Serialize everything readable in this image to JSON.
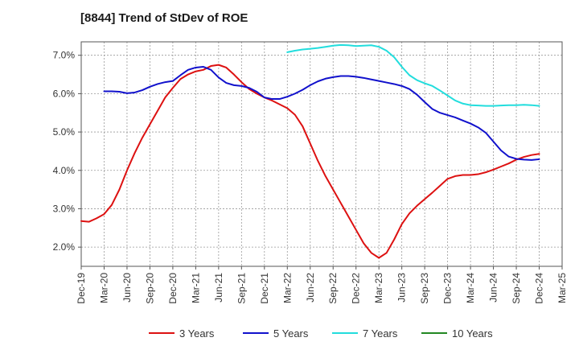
{
  "chart_data": {
    "type": "line",
    "title": "[8844]  Trend of StDev of ROE",
    "xlabel": "",
    "ylabel": "",
    "x_ticks": [
      "Dec-19",
      "Mar-20",
      "Jun-20",
      "Sep-20",
      "Dec-20",
      "Mar-21",
      "Jun-21",
      "Sep-21",
      "Dec-21",
      "Mar-22",
      "Jun-22",
      "Sep-22",
      "Dec-22",
      "Mar-23",
      "Jun-23",
      "Sep-23",
      "Dec-23",
      "Mar-24",
      "Jun-24",
      "Sep-24",
      "Dec-24",
      "Mar-25"
    ],
    "y_ticks": [
      "2.0%",
      "3.0%",
      "4.0%",
      "5.0%",
      "6.0%",
      "7.0%"
    ],
    "y_tick_values": [
      2.0,
      3.0,
      4.0,
      5.0,
      6.0,
      7.0
    ],
    "ylim": [
      1.5,
      7.35
    ],
    "grid": true,
    "legend_position": "bottom",
    "series": [
      {
        "name": "3 Years",
        "color": "#dd1111",
        "points": [
          [
            "Dec-19",
            2.68
          ],
          [
            "Jan-20",
            2.66
          ],
          [
            "Feb-20",
            2.75
          ],
          [
            "Mar-20",
            2.86
          ],
          [
            "Apr-20",
            3.1
          ],
          [
            "May-20",
            3.5
          ],
          [
            "Jun-20",
            4.0
          ],
          [
            "Jul-20",
            4.45
          ],
          [
            "Aug-20",
            4.85
          ],
          [
            "Sep-20",
            5.2
          ],
          [
            "Oct-20",
            5.55
          ],
          [
            "Nov-20",
            5.9
          ],
          [
            "Dec-20",
            6.15
          ],
          [
            "Jan-21",
            6.38
          ],
          [
            "Feb-21",
            6.5
          ],
          [
            "Mar-21",
            6.58
          ],
          [
            "Apr-21",
            6.62
          ],
          [
            "May-21",
            6.72
          ],
          [
            "Jun-21",
            6.75
          ],
          [
            "Jul-21",
            6.68
          ],
          [
            "Aug-21",
            6.5
          ],
          [
            "Sep-21",
            6.3
          ],
          [
            "Oct-21",
            6.12
          ],
          [
            "Nov-21",
            6.0
          ],
          [
            "Dec-21",
            5.9
          ],
          [
            "Jan-22",
            5.82
          ],
          [
            "Feb-22",
            5.72
          ],
          [
            "Mar-22",
            5.62
          ],
          [
            "Apr-22",
            5.45
          ],
          [
            "May-22",
            5.15
          ],
          [
            "Jun-22",
            4.7
          ],
          [
            "Jul-22",
            4.25
          ],
          [
            "Aug-22",
            3.85
          ],
          [
            "Sep-22",
            3.5
          ],
          [
            "Oct-22",
            3.15
          ],
          [
            "Nov-22",
            2.8
          ],
          [
            "Dec-22",
            2.45
          ],
          [
            "Jan-23",
            2.1
          ],
          [
            "Feb-23",
            1.85
          ],
          [
            "Mar-23",
            1.72
          ],
          [
            "Apr-23",
            1.85
          ],
          [
            "May-23",
            2.2
          ],
          [
            "Jun-23",
            2.6
          ],
          [
            "Jul-23",
            2.88
          ],
          [
            "Aug-23",
            3.08
          ],
          [
            "Sep-23",
            3.25
          ],
          [
            "Oct-23",
            3.42
          ],
          [
            "Nov-23",
            3.6
          ],
          [
            "Dec-23",
            3.78
          ],
          [
            "Jan-24",
            3.85
          ],
          [
            "Feb-24",
            3.88
          ],
          [
            "Mar-24",
            3.88
          ],
          [
            "Apr-24",
            3.9
          ],
          [
            "May-24",
            3.95
          ],
          [
            "Jun-24",
            4.02
          ],
          [
            "Jul-24",
            4.1
          ],
          [
            "Aug-24",
            4.18
          ],
          [
            "Sep-24",
            4.28
          ],
          [
            "Oct-24",
            4.35
          ],
          [
            "Nov-24",
            4.4
          ],
          [
            "Dec-24",
            4.43
          ]
        ]
      },
      {
        "name": "5 Years",
        "color": "#1111cc",
        "points": [
          [
            "Mar-20",
            6.06
          ],
          [
            "Apr-20",
            6.06
          ],
          [
            "May-20",
            6.05
          ],
          [
            "Jun-20",
            6.01
          ],
          [
            "Jul-20",
            6.03
          ],
          [
            "Aug-20",
            6.09
          ],
          [
            "Sep-20",
            6.18
          ],
          [
            "Oct-20",
            6.25
          ],
          [
            "Nov-20",
            6.3
          ],
          [
            "Dec-20",
            6.33
          ],
          [
            "Jan-21",
            6.48
          ],
          [
            "Feb-21",
            6.62
          ],
          [
            "Mar-21",
            6.68
          ],
          [
            "Apr-21",
            6.7
          ],
          [
            "May-21",
            6.62
          ],
          [
            "Jun-21",
            6.42
          ],
          [
            "Jul-21",
            6.28
          ],
          [
            "Aug-21",
            6.22
          ],
          [
            "Sep-21",
            6.2
          ],
          [
            "Oct-21",
            6.15
          ],
          [
            "Nov-21",
            6.05
          ],
          [
            "Dec-21",
            5.9
          ],
          [
            "Jan-22",
            5.86
          ],
          [
            "Feb-22",
            5.86
          ],
          [
            "Mar-22",
            5.92
          ],
          [
            "Apr-22",
            6.0
          ],
          [
            "May-22",
            6.1
          ],
          [
            "Jun-22",
            6.22
          ],
          [
            "Jul-22",
            6.32
          ],
          [
            "Aug-22",
            6.39
          ],
          [
            "Sep-22",
            6.43
          ],
          [
            "Oct-22",
            6.46
          ],
          [
            "Nov-22",
            6.46
          ],
          [
            "Dec-22",
            6.44
          ],
          [
            "Jan-23",
            6.41
          ],
          [
            "Feb-23",
            6.37
          ],
          [
            "Mar-23",
            6.33
          ],
          [
            "Apr-23",
            6.29
          ],
          [
            "May-23",
            6.25
          ],
          [
            "Jun-23",
            6.2
          ],
          [
            "Jul-23",
            6.12
          ],
          [
            "Aug-23",
            5.97
          ],
          [
            "Sep-23",
            5.78
          ],
          [
            "Oct-23",
            5.6
          ],
          [
            "Nov-23",
            5.5
          ],
          [
            "Dec-23",
            5.44
          ],
          [
            "Jan-24",
            5.38
          ],
          [
            "Feb-24",
            5.3
          ],
          [
            "Mar-24",
            5.22
          ],
          [
            "Apr-24",
            5.12
          ],
          [
            "May-24",
            4.98
          ],
          [
            "Jun-24",
            4.75
          ],
          [
            "Jul-24",
            4.52
          ],
          [
            "Aug-24",
            4.36
          ],
          [
            "Sep-24",
            4.3
          ],
          [
            "Oct-24",
            4.28
          ],
          [
            "Nov-24",
            4.27
          ],
          [
            "Dec-24",
            4.29
          ]
        ]
      },
      {
        "name": "7 Years",
        "color": "#22dddd",
        "points": [
          [
            "Mar-22",
            7.08
          ],
          [
            "Apr-22",
            7.12
          ],
          [
            "May-22",
            7.15
          ],
          [
            "Jun-22",
            7.17
          ],
          [
            "Jul-22",
            7.19
          ],
          [
            "Aug-22",
            7.22
          ],
          [
            "Sep-22",
            7.25
          ],
          [
            "Oct-22",
            7.27
          ],
          [
            "Nov-22",
            7.26
          ],
          [
            "Dec-22",
            7.24
          ],
          [
            "Jan-23",
            7.25
          ],
          [
            "Feb-23",
            7.26
          ],
          [
            "Mar-23",
            7.22
          ],
          [
            "Apr-23",
            7.12
          ],
          [
            "May-23",
            6.95
          ],
          [
            "Jun-23",
            6.7
          ],
          [
            "Jul-23",
            6.48
          ],
          [
            "Aug-23",
            6.35
          ],
          [
            "Sep-23",
            6.27
          ],
          [
            "Oct-23",
            6.2
          ],
          [
            "Nov-23",
            6.08
          ],
          [
            "Dec-23",
            5.95
          ],
          [
            "Jan-24",
            5.82
          ],
          [
            "Feb-24",
            5.74
          ],
          [
            "Mar-24",
            5.7
          ],
          [
            "Apr-24",
            5.69
          ],
          [
            "May-24",
            5.68
          ],
          [
            "Jun-24",
            5.68
          ],
          [
            "Jul-24",
            5.69
          ],
          [
            "Aug-24",
            5.7
          ],
          [
            "Sep-24",
            5.7
          ],
          [
            "Oct-24",
            5.71
          ],
          [
            "Nov-24",
            5.7
          ],
          [
            "Dec-24",
            5.68
          ]
        ]
      },
      {
        "name": "10 Years",
        "color": "#228822",
        "points": []
      }
    ]
  }
}
